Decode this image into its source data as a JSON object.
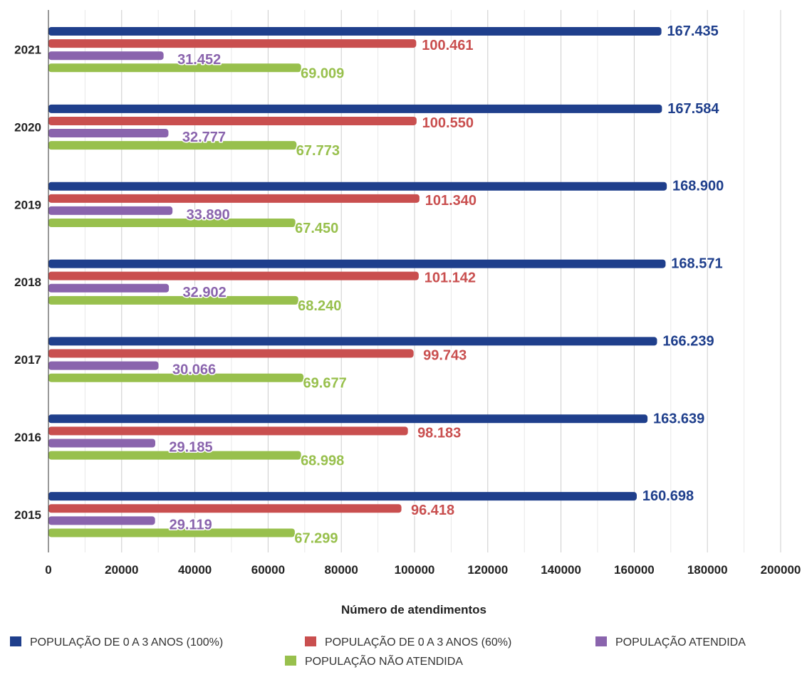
{
  "chart_data": {
    "type": "bar",
    "orientation": "horizontal",
    "categories": [
      "2021",
      "2020",
      "2019",
      "2018",
      "2017",
      "2016",
      "2015"
    ],
    "series": [
      {
        "name": "POPULAÇÃO DE 0 A 3 ANOS (100%)",
        "color": "#1f3f8c",
        "values": [
          167435,
          167584,
          168900,
          168571,
          166239,
          163639,
          160698
        ],
        "labels": [
          "167.435",
          "167.584",
          "168.900",
          "168.571",
          "166.239",
          "163.639",
          "160.698"
        ]
      },
      {
        "name": "POPULAÇÃO DE 0 A 3 ANOS (60%)",
        "color": "#c94f4f",
        "values": [
          100461,
          100550,
          101340,
          101142,
          99743,
          98183,
          96418
        ],
        "labels": [
          "100.461",
          "100.550",
          "101.340",
          "101.142",
          "99.743",
          "98.183",
          "96.418"
        ]
      },
      {
        "name": "POPULAÇÃO ATENDIDA",
        "color": "#8a64ad",
        "values": [
          31452,
          32777,
          33890,
          32902,
          30066,
          29185,
          29119
        ],
        "labels": [
          "31.452",
          "32.777",
          "33.890",
          "32.902",
          "30.066",
          "29.185",
          "29.119"
        ]
      },
      {
        "name": "POPULAÇÃO NÃO ATENDIDA",
        "color": "#98c04d",
        "values": [
          69009,
          67773,
          67450,
          68240,
          69677,
          68998,
          67299
        ],
        "labels": [
          "69.009",
          "67.773",
          "67.450",
          "68.240",
          "69.677",
          "68.998",
          "67.299"
        ]
      }
    ],
    "xlim": [
      0,
      200000
    ],
    "xticks": [
      "0",
      "20000",
      "40000",
      "60000",
      "80000",
      "100000",
      "120000",
      "140000",
      "160000",
      "180000",
      "200000"
    ],
    "xlabel": "Número de atendimentos",
    "ylabel": "",
    "title": "",
    "grid": true,
    "legend_position": "bottom"
  }
}
